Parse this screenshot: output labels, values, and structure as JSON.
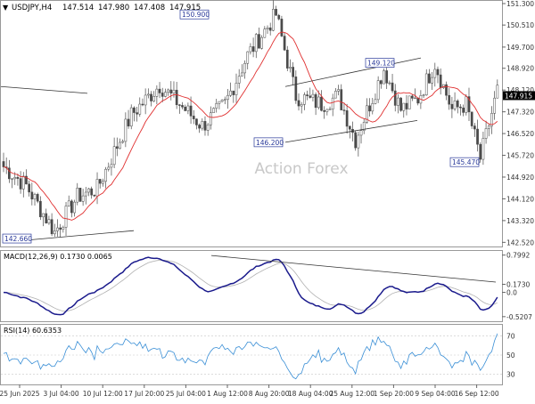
{
  "chart_data": [
    {
      "type": "candlestick",
      "header": {
        "symbol": "USDJPY,H4",
        "open": "147.514",
        "high": "147.980",
        "low": "147.408",
        "close": "147.915"
      },
      "watermark": "Action Forex",
      "ylim": [
        142.4,
        151.3
      ],
      "y_ticks": [
        "151.300",
        "150.510",
        "149.700",
        "148.920",
        "148.120",
        "147.320",
        "146.520",
        "145.720",
        "144.920",
        "144.120",
        "143.320",
        "142.520"
      ],
      "current_price": "147.915",
      "annotations": [
        {
          "label": "150.900",
          "price": 150.9
        },
        {
          "label": "149.120",
          "price": 149.12
        },
        {
          "label": "146.200",
          "price": 146.2
        },
        {
          "label": "145.470",
          "price": 145.47
        },
        {
          "label": "142.660",
          "price": 142.66
        }
      ],
      "ma_color": "#e03030",
      "up_color": "#4a4a4a",
      "down_color": "#4a4a4a"
    },
    {
      "type": "line",
      "title": "MACD(12,26,9) 0.1730 0.0065",
      "ylim": [
        -0.6,
        0.85
      ],
      "y_ticks": [
        "0.7992",
        "0.1730",
        "0.0",
        "-0.5207"
      ],
      "series": [
        {
          "role": "macd",
          "color": "#1a1a8c"
        },
        {
          "role": "signal",
          "color": "#b0b0b0"
        }
      ]
    },
    {
      "type": "line",
      "title": "RSI(14) 60.6353",
      "ylim": [
        20,
        80
      ],
      "y_ticks": [
        "70",
        "50",
        "30"
      ],
      "color": "#3a8fd6"
    }
  ],
  "x_axis": {
    "tick_labels": [
      "25 Jun 2025",
      "3 Jul 04:00",
      "10 Jul 12:00",
      "17 Jul 20:00",
      "25 Jul 04:00",
      "1 Aug 12:00",
      "8 Aug 20:00",
      "18 Aug 04:00",
      "25 Aug 12:00",
      "1 Sep 20:00",
      "9 Sep 04:00",
      "16 Sep 12:00"
    ]
  }
}
